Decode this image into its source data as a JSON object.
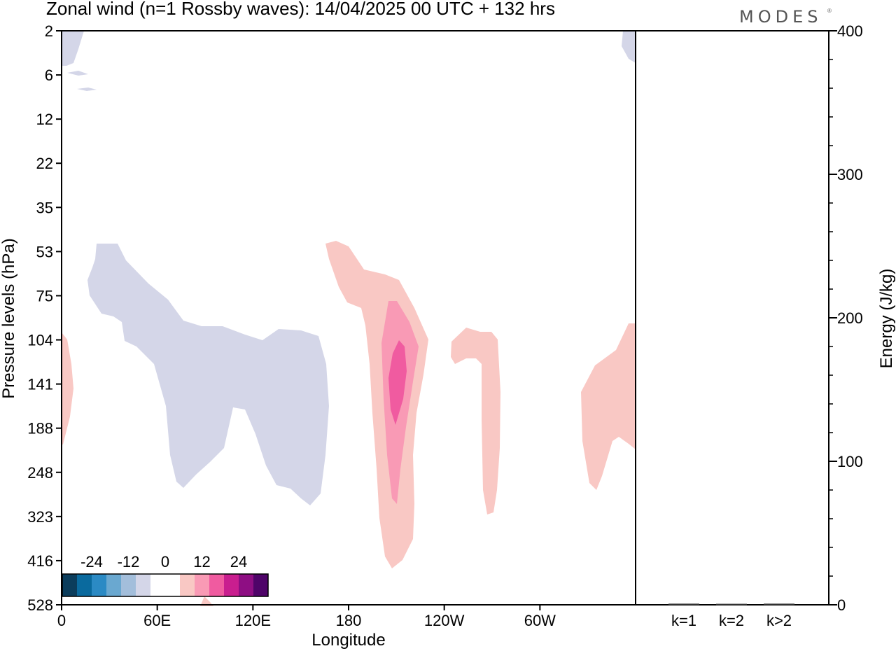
{
  "title": "Zonal wind (n=1 Rossby waves):  14/04/2025  00 UTC  + 132 hrs",
  "logo": {
    "text": "MODES",
    "mark": "®"
  },
  "chart_data": [
    {
      "type": "heatmap",
      "xlabel": "Longitude",
      "ylabel": "Pressure levels (hPa)",
      "x_ticks": [
        "0",
        "60E",
        "120E",
        "180",
        "120W",
        "60W"
      ],
      "x_tick_values": [
        0,
        60,
        120,
        180,
        240,
        300
      ],
      "xlim": [
        0,
        360
      ],
      "y_ticks": [
        "2",
        "6",
        "12",
        "22",
        "35",
        "53",
        "75",
        "104",
        "141",
        "188",
        "248",
        "323",
        "416",
        "528"
      ],
      "y_scale": "model levels (nonlinear), top 2 hPa to bottom 528 hPa",
      "colorbar": {
        "ticks": [
          "-24",
          "-12",
          "0",
          "12",
          "24"
        ],
        "tick_values": [
          -24,
          -12,
          0,
          12,
          24
        ],
        "colors": [
          "#0b3d5c",
          "#0a6a9e",
          "#2b8ac4",
          "#6aa8d0",
          "#a3bedb",
          "#d4d6e8",
          "#ffffff",
          "#ffffff",
          "#f9c8c4",
          "#f99ab5",
          "#f05ba0",
          "#c91e8f",
          "#8e0e83",
          "#4f0469"
        ]
      },
      "regions": [
        {
          "sign": "negative",
          "level": "-6 to -3",
          "lon": [
            0,
            12
          ],
          "pressure": [
            2,
            6
          ]
        },
        {
          "sign": "negative",
          "level": "-6 to -3",
          "lon": [
            15,
            165
          ],
          "pressure": [
            53,
            323
          ]
        },
        {
          "sign": "negative",
          "level": "-6 to -3",
          "lon": [
            352,
            360
          ],
          "pressure": [
            2,
            6
          ]
        },
        {
          "sign": "positive",
          "level": "3 to 6",
          "lon": [
            0,
            8
          ],
          "pressure": [
            104,
            188
          ]
        },
        {
          "sign": "positive",
          "level": "3 to 6",
          "lon": [
            165,
            230
          ],
          "pressure": [
            53,
            416
          ]
        },
        {
          "sign": "positive",
          "level": "6 to 9",
          "lon": [
            193,
            223
          ],
          "pressure": [
            75,
            323
          ]
        },
        {
          "sign": "positive",
          "level": "9 to 12",
          "lon": [
            205,
            215
          ],
          "pressure": [
            104,
            188
          ]
        },
        {
          "sign": "positive",
          "level": "3 to 6",
          "lon": [
            245,
            275
          ],
          "pressure": [
            104,
            323
          ]
        },
        {
          "sign": "positive",
          "level": "3 to 6",
          "lon": [
            325,
            360
          ],
          "pressure": [
            104,
            248
          ]
        }
      ]
    },
    {
      "type": "bar",
      "ylabel": "Energy (J/kg)",
      "categories": [
        "k=1",
        "k=2",
        "k>2"
      ],
      "values": [
        0.3,
        0.2,
        0.3
      ],
      "ylim": [
        0,
        400
      ],
      "y_ticks": [
        "0",
        "100",
        "200",
        "300",
        "400"
      ],
      "y_tick_values": [
        0,
        100,
        200,
        300,
        400
      ],
      "y_minor_step": 20
    }
  ]
}
